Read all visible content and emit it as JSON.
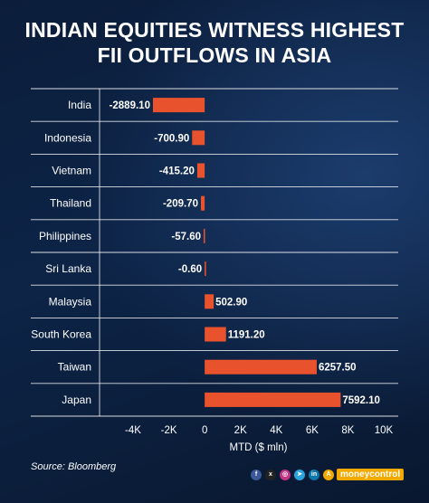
{
  "header": {
    "title_line1": "INDIAN EQUITIES WITNESS HIGHEST",
    "title_line2": "FII OUTFLOWS IN ASIA"
  },
  "source": "Source: Bloomberg",
  "brand": "moneycontrol",
  "footer_icons": [
    "facebook-icon",
    "x-icon",
    "instagram-icon",
    "telegram-icon",
    "linkedin-icon",
    "app-icon"
  ],
  "colors": {
    "bar": "#e8532e",
    "background": "#0b1d3a",
    "text": "#ffffff"
  },
  "chart_data": {
    "type": "bar",
    "orientation": "horizontal",
    "categories": [
      "India",
      "Indonesia",
      "Vietnam",
      "Thailand",
      "Philippines",
      "Sri Lanka",
      "Malaysia",
      "South Korea",
      "Taiwan",
      "Japan"
    ],
    "values": [
      -2889.1,
      -700.9,
      -415.2,
      -209.7,
      -57.6,
      -0.6,
      502.9,
      1191.2,
      6257.5,
      7592.1
    ],
    "value_labels": [
      "-2889.10",
      "-700.90",
      "-415.20",
      "-209.70",
      "-57.60",
      "-0.60",
      "502.90",
      "1191.20",
      "6257.50",
      "7592.10"
    ],
    "xlabel": "MTD ($ mln)",
    "xlim": [
      -4000,
      10000
    ],
    "xticks": [
      -4000,
      -2000,
      0,
      2000,
      4000,
      6000,
      8000,
      10000
    ],
    "xtick_labels": [
      "-4K",
      "-2K",
      "0",
      "2K",
      "4K",
      "6K",
      "8K",
      "10K"
    ],
    "grid": false
  }
}
